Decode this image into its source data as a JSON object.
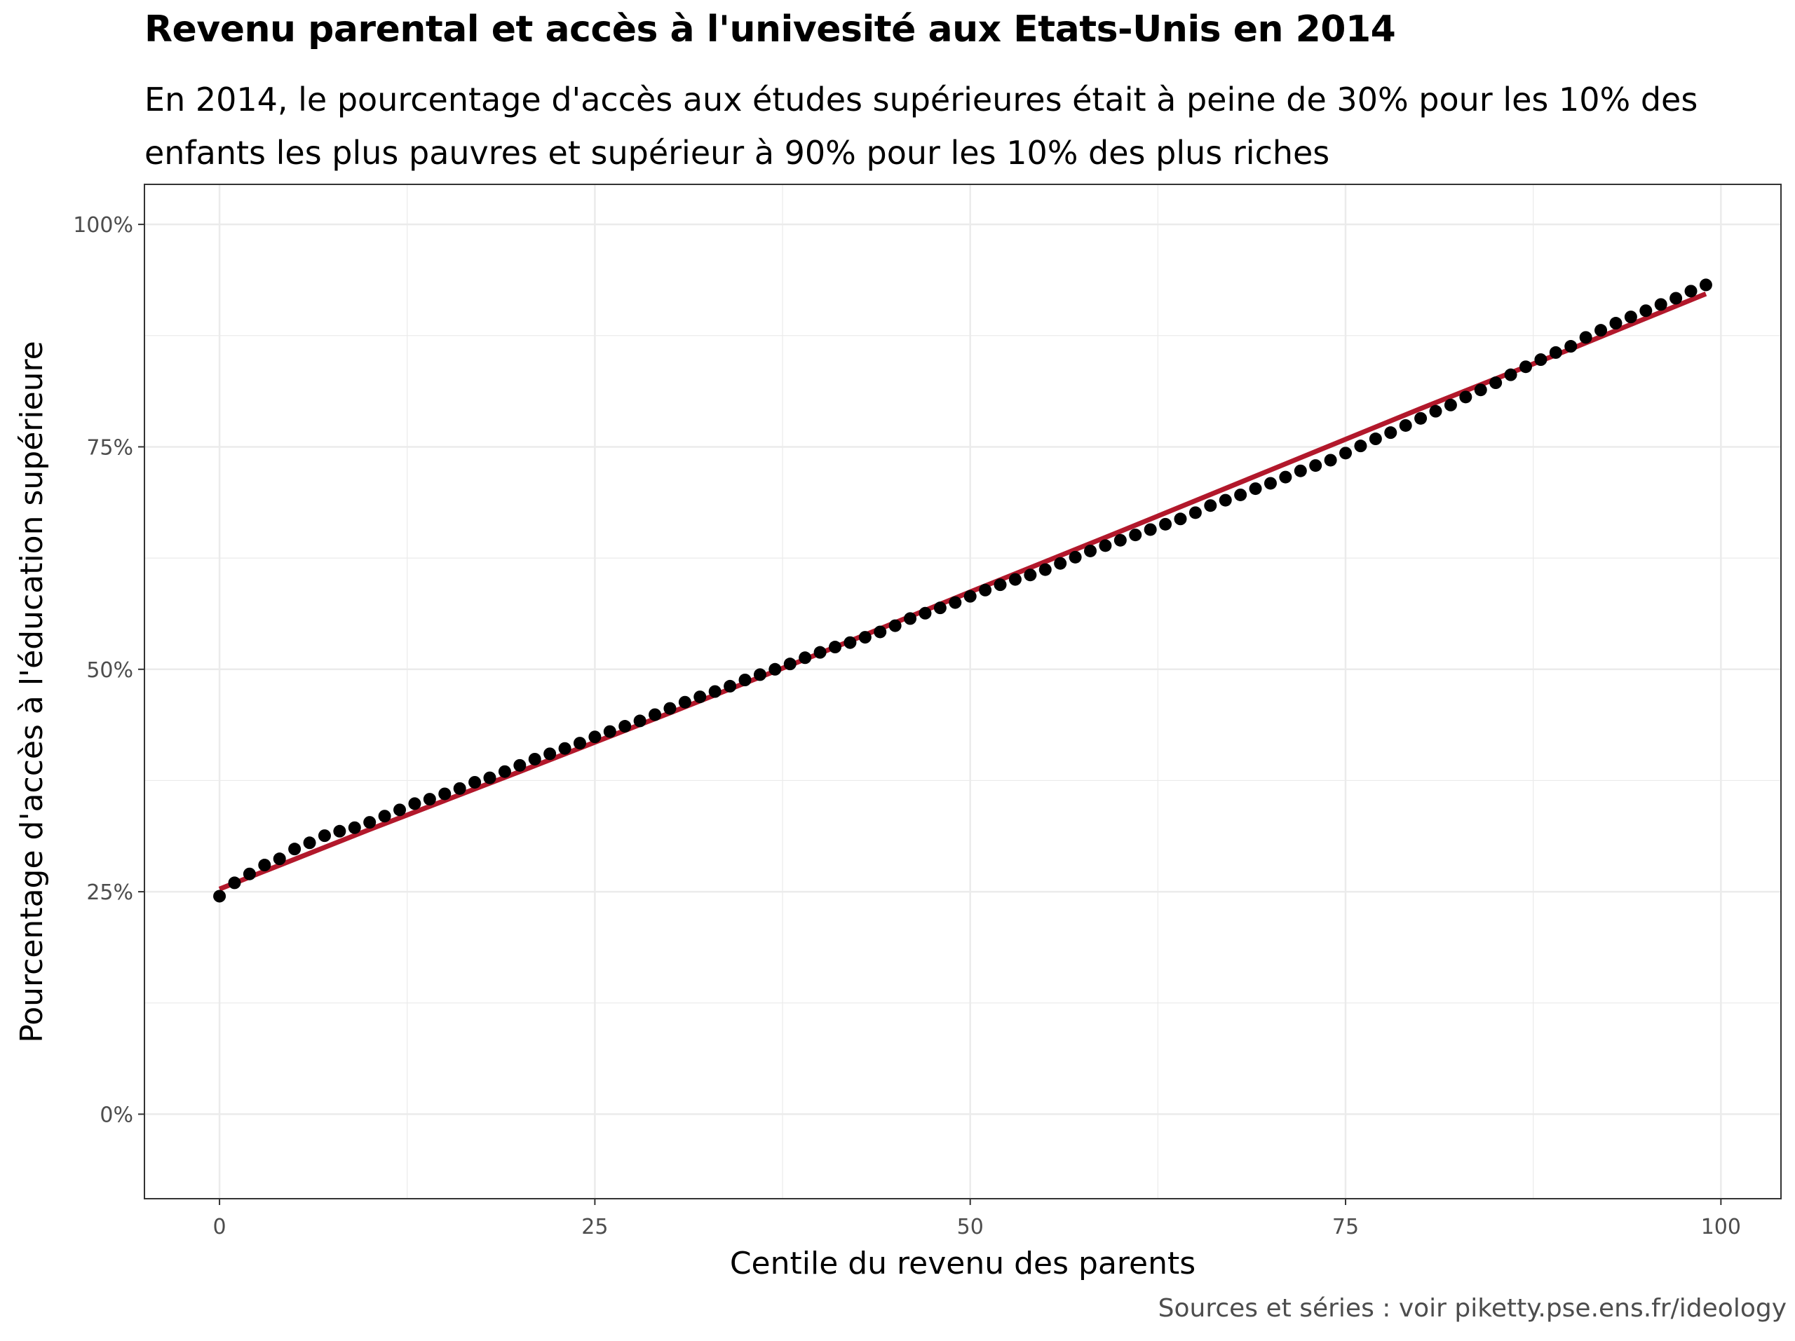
{
  "chart_data": {
    "type": "scatter",
    "title": "Revenu parental et accès à l'univesité aux Etats-Unis en 2014",
    "subtitle": "En 2014,  le pourcentage d'accès aux études supérieures était à peine de 30% pour les 10% des enfants les plus pauvres et supérieur à 90% pour les 10% des plus riches",
    "caption": "Sources et séries : voir piketty.pse.ens.fr/ideology",
    "xlabel": "Centile du revenu des parents",
    "ylabel": "Pourcentage d'accès à l'éducation supérieure",
    "xlim": [
      -5,
      104
    ],
    "ylim": [
      -0.095,
      1.045
    ],
    "x_ticks": [
      0,
      25,
      50,
      75,
      100
    ],
    "x_tick_labels": [
      "0",
      "25",
      "50",
      "75",
      "100"
    ],
    "y_ticks": [
      0,
      0.25,
      0.5,
      0.75,
      1.0
    ],
    "y_tick_labels": [
      "0%",
      "25%",
      "50%",
      "75%",
      "100%"
    ],
    "grid": true,
    "colors": {
      "points": "#000000",
      "fit_line": "#b2182b",
      "grid": "#ebebeb",
      "panel_border": "#333333"
    },
    "series": [
      {
        "kind": "points",
        "x": [
          0,
          1,
          2,
          3,
          4,
          5,
          6,
          7,
          8,
          9,
          10,
          11,
          12,
          13,
          14,
          15,
          16,
          17,
          18,
          19,
          20,
          21,
          22,
          23,
          24,
          25,
          26,
          27,
          28,
          29,
          30,
          31,
          32,
          33,
          34,
          35,
          36,
          37,
          38,
          39,
          40,
          41,
          42,
          43,
          44,
          45,
          46,
          47,
          48,
          49,
          50,
          51,
          52,
          53,
          54,
          55,
          56,
          57,
          58,
          59,
          60,
          61,
          62,
          63,
          64,
          65,
          66,
          67,
          68,
          69,
          70,
          71,
          72,
          73,
          74,
          75,
          76,
          77,
          78,
          79,
          80,
          81,
          82,
          83,
          84,
          85,
          86,
          87,
          88,
          89,
          90,
          91,
          92,
          93,
          94,
          95,
          96,
          97,
          98,
          99
        ],
        "y": [
          0.245,
          0.26,
          0.27,
          0.28,
          0.287,
          0.298,
          0.305,
          0.313,
          0.318,
          0.322,
          0.328,
          0.335,
          0.342,
          0.349,
          0.354,
          0.36,
          0.366,
          0.373,
          0.378,
          0.385,
          0.392,
          0.399,
          0.405,
          0.411,
          0.417,
          0.424,
          0.43,
          0.436,
          0.442,
          0.449,
          0.456,
          0.463,
          0.469,
          0.475,
          0.481,
          0.488,
          0.494,
          0.5,
          0.506,
          0.513,
          0.519,
          0.525,
          0.53,
          0.536,
          0.542,
          0.549,
          0.557,
          0.563,
          0.569,
          0.575,
          0.582,
          0.589,
          0.595,
          0.601,
          0.606,
          0.612,
          0.619,
          0.626,
          0.633,
          0.639,
          0.645,
          0.651,
          0.657,
          0.663,
          0.669,
          0.676,
          0.684,
          0.69,
          0.696,
          0.703,
          0.709,
          0.716,
          0.723,
          0.729,
          0.735,
          0.743,
          0.751,
          0.759,
          0.766,
          0.774,
          0.782,
          0.79,
          0.797,
          0.806,
          0.814,
          0.822,
          0.831,
          0.84,
          0.848,
          0.856,
          0.863,
          0.873,
          0.881,
          0.889,
          0.896,
          0.903,
          0.91,
          0.917,
          0.925,
          0.932
        ]
      },
      {
        "kind": "fit-line",
        "x": [
          0,
          10,
          20,
          30,
          40,
          50,
          60,
          70,
          80,
          90,
          99
        ],
        "y": [
          0.253,
          0.32,
          0.385,
          0.451,
          0.518,
          0.587,
          0.655,
          0.724,
          0.793,
          0.86,
          0.922
        ]
      }
    ]
  }
}
